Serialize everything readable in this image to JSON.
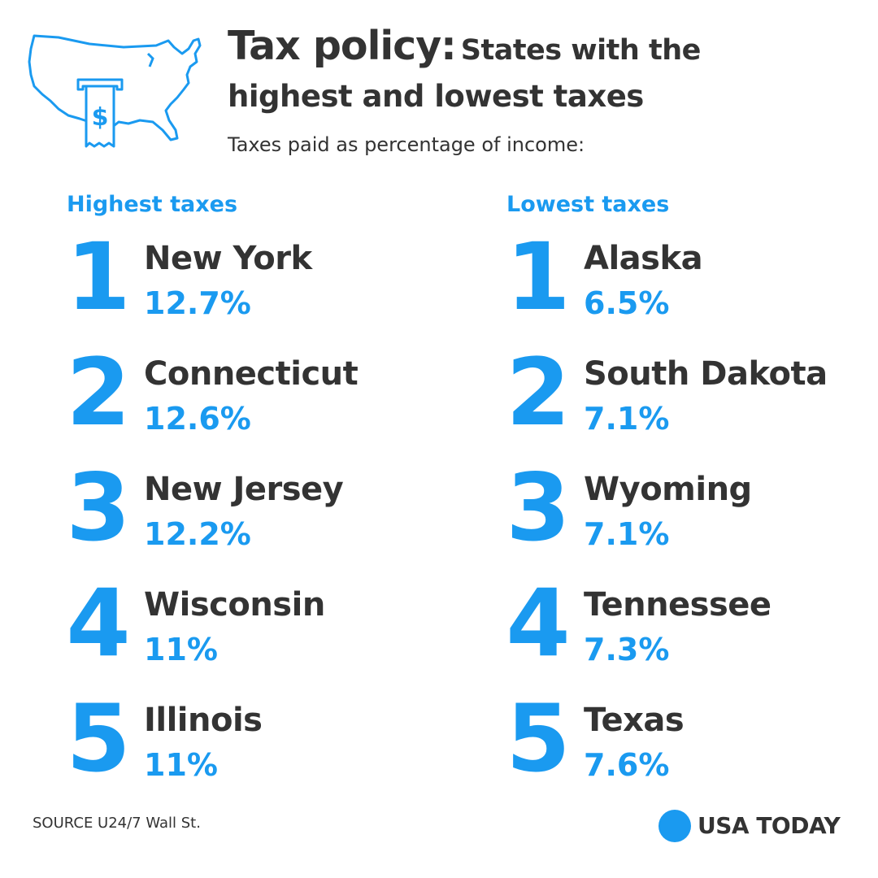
{
  "header": {
    "title_main": "Tax policy:",
    "title_rest": "States with the",
    "title_line2": "highest and lowest taxes",
    "subtitle": "Taxes paid as percentage of income:",
    "icon": "us-map-tax-receipt-icon",
    "icon_symbol": "$"
  },
  "highest": {
    "title": "Highest taxes",
    "items": [
      {
        "rank": "1",
        "state": "New York",
        "value": "12.7%"
      },
      {
        "rank": "2",
        "state": "Connecticut",
        "value": "12.6%"
      },
      {
        "rank": "3",
        "state": "New Jersey",
        "value": "12.2%"
      },
      {
        "rank": "4",
        "state": "Wisconsin",
        "value": "11%"
      },
      {
        "rank": "5",
        "state": "Illinois",
        "value": "11%"
      }
    ]
  },
  "lowest": {
    "title": "Lowest taxes",
    "items": [
      {
        "rank": "1",
        "state": "Alaska",
        "value": "6.5%"
      },
      {
        "rank": "2",
        "state": "South Dakota",
        "value": "7.1%"
      },
      {
        "rank": "3",
        "state": "Wyoming",
        "value": "7.1%"
      },
      {
        "rank": "4",
        "state": "Tennessee",
        "value": "7.3%"
      },
      {
        "rank": "5",
        "state": "Texas",
        "value": "7.6%"
      }
    ]
  },
  "footer": {
    "source": "SOURCE U24/7 Wall St.",
    "brand": "USA TODAY"
  },
  "colors": {
    "accent": "#1a9af0",
    "text": "#333333",
    "background": "#ffffff"
  }
}
